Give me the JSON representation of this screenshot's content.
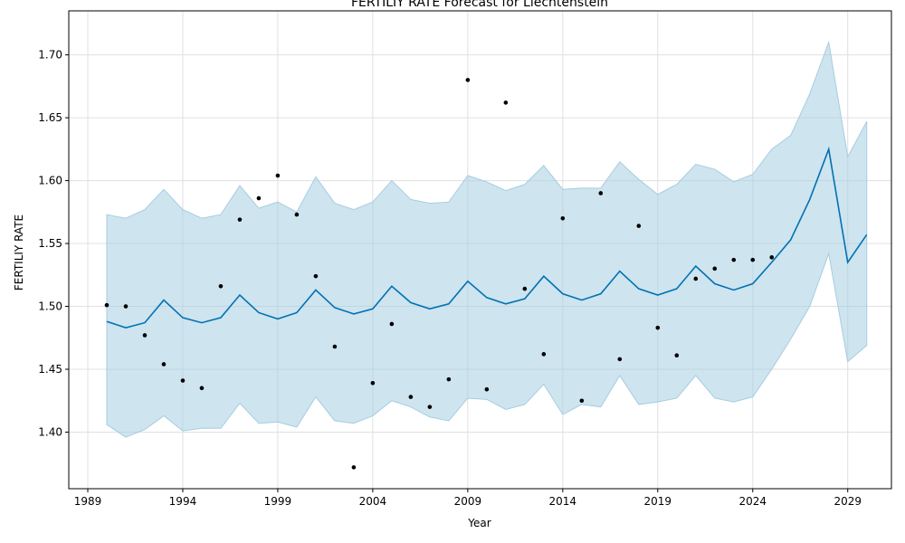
{
  "chart_data": {
    "type": "line",
    "title": "FERTILIY RATE Forecast for Liechtenstein",
    "xlabel": "Year",
    "ylabel": "FERTILIY RATE",
    "xlim": [
      1988,
      2031.3
    ],
    "ylim": [
      1.355,
      1.735
    ],
    "x_ticks": [
      1989,
      1994,
      1999,
      2004,
      2009,
      2014,
      2019,
      2024,
      2029
    ],
    "y_ticks": [
      1.4,
      1.45,
      1.5,
      1.55,
      1.6,
      1.65,
      1.7
    ],
    "grid": true,
    "colors": {
      "forecast": "#0072b2",
      "band": "#a6cde2",
      "points": "#000000",
      "grid": "#e0e0e0"
    },
    "observed": {
      "x": [
        1990,
        1991,
        1992,
        1993,
        1994,
        1995,
        1996,
        1997,
        1998,
        1999,
        2000,
        2001,
        2002,
        2003,
        2004,
        2005,
        2006,
        2007,
        2008,
        2009,
        2010,
        2011,
        2012,
        2013,
        2014,
        2015,
        2016,
        2017,
        2018,
        2019,
        2020,
        2021,
        2022,
        2023,
        2024,
        2025
      ],
      "y": [
        1.501,
        1.5,
        1.477,
        1.454,
        1.441,
        1.435,
        1.516,
        1.569,
        1.586,
        1.604,
        1.573,
        1.524,
        1.468,
        1.372,
        1.439,
        1.486,
        1.428,
        1.42,
        1.442,
        1.68,
        1.434,
        1.662,
        1.514,
        1.462,
        1.57,
        1.425,
        1.59,
        1.458,
        1.564,
        1.483,
        1.461,
        1.522,
        1.53,
        1.537,
        1.537,
        1.539
      ]
    },
    "forecast": {
      "x": [
        1990,
        1991,
        1992,
        1993,
        1994,
        1995,
        1996,
        1997,
        1998,
        1999,
        2000,
        2001,
        2002,
        2003,
        2004,
        2005,
        2006,
        2007,
        2008,
        2009,
        2010,
        2011,
        2012,
        2013,
        2014,
        2015,
        2016,
        2017,
        2018,
        2019,
        2020,
        2021,
        2022,
        2023,
        2024,
        2025,
        2026,
        2027,
        2028,
        2029,
        2030
      ],
      "yhat": [
        1.488,
        1.483,
        1.487,
        1.505,
        1.491,
        1.487,
        1.491,
        1.509,
        1.495,
        1.49,
        1.495,
        1.513,
        1.499,
        1.494,
        1.498,
        1.516,
        1.503,
        1.498,
        1.502,
        1.52,
        1.507,
        1.502,
        1.506,
        1.524,
        1.51,
        1.505,
        1.51,
        1.528,
        1.514,
        1.509,
        1.514,
        1.532,
        1.518,
        1.513,
        1.518,
        1.535,
        1.553,
        1.585,
        1.625,
        1.535,
        1.557
      ],
      "lower": [
        1.406,
        1.396,
        1.402,
        1.413,
        1.401,
        1.403,
        1.403,
        1.423,
        1.407,
        1.408,
        1.404,
        1.428,
        1.409,
        1.407,
        1.413,
        1.425,
        1.42,
        1.412,
        1.409,
        1.427,
        1.426,
        1.418,
        1.422,
        1.438,
        1.414,
        1.422,
        1.42,
        1.445,
        1.422,
        1.424,
        1.427,
        1.445,
        1.427,
        1.424,
        1.428,
        1.45,
        1.474,
        1.5,
        1.542,
        1.456,
        1.469
      ],
      "upper": [
        1.573,
        1.57,
        1.577,
        1.593,
        1.577,
        1.57,
        1.573,
        1.596,
        1.578,
        1.583,
        1.575,
        1.603,
        1.582,
        1.577,
        1.583,
        1.6,
        1.585,
        1.582,
        1.583,
        1.604,
        1.599,
        1.592,
        1.597,
        1.612,
        1.593,
        1.594,
        1.594,
        1.615,
        1.601,
        1.589,
        1.597,
        1.613,
        1.609,
        1.599,
        1.605,
        1.625,
        1.636,
        1.669,
        1.71,
        1.619,
        1.647
      ]
    }
  }
}
